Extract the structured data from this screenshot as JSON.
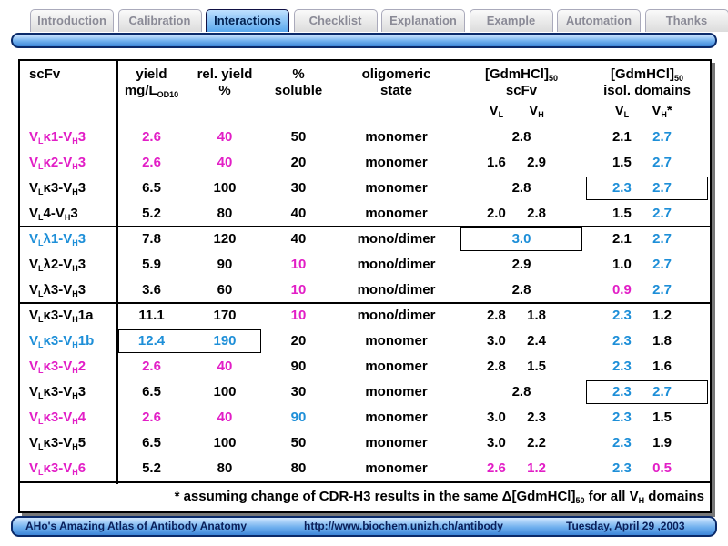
{
  "tabs": {
    "items": [
      "Introduction",
      "Calibration",
      "Interactions",
      "Checklist",
      "Explanation",
      "Example",
      "Automation",
      "Thanks"
    ],
    "active": 2
  },
  "table": {
    "header": [
      {
        "lines": [
          [
            "scFv"
          ]
        ]
      },
      {
        "lines": [
          [
            "yield"
          ],
          [
            "mg/L",
            "OD10"
          ]
        ]
      },
      {
        "lines": [
          [
            "rel. yield"
          ],
          [
            "%"
          ]
        ]
      },
      {
        "lines": [
          [
            "%"
          ],
          [
            "soluble"
          ]
        ]
      },
      {
        "lines": [
          [
            "oligomeric"
          ],
          [
            "state"
          ]
        ]
      },
      {
        "lines": [
          [
            "[GdmHCl]",
            "50"
          ],
          [
            "scFv"
          ]
        ],
        "pair": [
          [
            "V",
            "L"
          ],
          [
            "V",
            "H"
          ]
        ]
      },
      {
        "lines": [
          [
            "[GdmHCl]",
            "50"
          ],
          [
            "isol. domains"
          ]
        ],
        "pair": [
          [
            "V",
            "L"
          ],
          [
            "V",
            "H",
            "*"
          ]
        ]
      }
    ],
    "groups": [
      {
        "rows": [
          {
            "scfv": {
              "parts": [
                "V",
                "L",
                "κ1-V",
                "H",
                "3"
              ],
              "color": "#e21ec6"
            },
            "yield": {
              "text": "2.6",
              "color": "#e21ec6"
            },
            "rel_yield": {
              "text": "40",
              "color": "#e21ec6"
            },
            "soluble": {
              "text": "50"
            },
            "state": {
              "text": "monomer"
            },
            "gdm_scfv": {
              "text": "2.8"
            },
            "isol": {
              "vl": {
                "text": "2.1"
              },
              "vh": {
                "text": "2.7",
                "color": "#1e8fd8"
              }
            }
          },
          {
            "scfv": {
              "parts": [
                "V",
                "L",
                "κ2-V",
                "H",
                "3"
              ],
              "color": "#e21ec6"
            },
            "yield": {
              "text": "2.6",
              "color": "#e21ec6"
            },
            "rel_yield": {
              "text": "40",
              "color": "#e21ec6"
            },
            "soluble": {
              "text": "20"
            },
            "state": {
              "text": "monomer"
            },
            "gdm_scfv": {
              "vl": {
                "text": "1.6"
              },
              "vh": {
                "text": "2.9"
              }
            },
            "isol": {
              "vl": {
                "text": "1.5"
              },
              "vh": {
                "text": "2.7",
                "color": "#1e8fd8"
              }
            }
          },
          {
            "scfv": {
              "parts": [
                "V",
                "L",
                "κ3-V",
                "H",
                "3"
              ]
            },
            "yield": {
              "text": "6.5"
            },
            "rel_yield": {
              "text": "100"
            },
            "soluble": {
              "text": "30"
            },
            "state": {
              "text": "monomer"
            },
            "gdm_scfv": {
              "text": "2.8"
            },
            "isol": {
              "vl": {
                "text": "2.3",
                "color": "#1e8fd8"
              },
              "vh": {
                "text": "2.7",
                "color": "#1e8fd8"
              }
            },
            "box": [
              "isol"
            ]
          },
          {
            "scfv": {
              "parts": [
                "V",
                "L",
                "4-V",
                "H",
                "3"
              ]
            },
            "yield": {
              "text": "5.2"
            },
            "rel_yield": {
              "text": "80"
            },
            "soluble": {
              "text": "40"
            },
            "state": {
              "text": "monomer"
            },
            "gdm_scfv": {
              "vl": {
                "text": "2.0"
              },
              "vh": {
                "text": "2.8"
              }
            },
            "isol": {
              "vl": {
                "text": "1.5"
              },
              "vh": {
                "text": "2.7",
                "color": "#1e8fd8"
              }
            }
          }
        ]
      },
      {
        "rows": [
          {
            "scfv": {
              "parts": [
                "V",
                "L",
                "λ1-V",
                "H",
                "3"
              ],
              "color": "#1e8fd8"
            },
            "yield": {
              "text": "7.8"
            },
            "rel_yield": {
              "text": "120"
            },
            "soluble": {
              "text": "40"
            },
            "state": {
              "text": "mono/dimer"
            },
            "gdm_scfv": {
              "text": "3.0",
              "color": "#1e8fd8"
            },
            "isol": {
              "vl": {
                "text": "2.1"
              },
              "vh": {
                "text": "2.7",
                "color": "#1e8fd8"
              }
            },
            "box": [
              "gdm_scfv"
            ]
          },
          {
            "scfv": {
              "parts": [
                "V",
                "L",
                "λ2-V",
                "H",
                "3"
              ]
            },
            "yield": {
              "text": "5.9"
            },
            "rel_yield": {
              "text": "90"
            },
            "soluble": {
              "text": "10",
              "color": "#e21ec6"
            },
            "state": {
              "text": "mono/dimer"
            },
            "gdm_scfv": {
              "text": "2.9"
            },
            "isol": {
              "vl": {
                "text": "1.0"
              },
              "vh": {
                "text": "2.7",
                "color": "#1e8fd8"
              }
            }
          },
          {
            "scfv": {
              "parts": [
                "V",
                "L",
                "λ3-V",
                "H",
                "3"
              ]
            },
            "yield": {
              "text": "3.6"
            },
            "rel_yield": {
              "text": "60"
            },
            "soluble": {
              "text": "10",
              "color": "#e21ec6"
            },
            "state": {
              "text": "mono/dimer"
            },
            "gdm_scfv": {
              "text": "2.8"
            },
            "isol": {
              "vl": {
                "text": "0.9",
                "color": "#e21ec6"
              },
              "vh": {
                "text": "2.7",
                "color": "#1e8fd8"
              }
            }
          }
        ]
      },
      {
        "rows": [
          {
            "scfv": {
              "parts": [
                "V",
                "L",
                "κ3-V",
                "H",
                "1a"
              ]
            },
            "yield": {
              "text": "11.1"
            },
            "rel_yield": {
              "text": "170"
            },
            "soluble": {
              "text": "10",
              "color": "#e21ec6"
            },
            "state": {
              "text": "mono/dimer"
            },
            "gdm_scfv": {
              "vl": {
                "text": "2.8"
              },
              "vh": {
                "text": "1.8"
              }
            },
            "isol": {
              "vl": {
                "text": "2.3",
                "color": "#1e8fd8"
              },
              "vh": {
                "text": "1.2"
              }
            }
          },
          {
            "scfv": {
              "parts": [
                "V",
                "L",
                "κ3-V",
                "H",
                "1b"
              ],
              "color": "#1e8fd8"
            },
            "yield": {
              "text": "12.4",
              "color": "#1e8fd8"
            },
            "rel_yield": {
              "text": "190",
              "color": "#1e8fd8"
            },
            "soluble": {
              "text": "20"
            },
            "state": {
              "text": "monomer"
            },
            "gdm_scfv": {
              "vl": {
                "text": "3.0"
              },
              "vh": {
                "text": "2.4"
              }
            },
            "isol": {
              "vl": {
                "text": "2.3",
                "color": "#1e8fd8"
              },
              "vh": {
                "text": "1.8"
              }
            },
            "box": [
              "yield",
              "rel_yield"
            ]
          },
          {
            "scfv": {
              "parts": [
                "V",
                "L",
                "κ3-V",
                "H",
                "2"
              ],
              "color": "#e21ec6"
            },
            "yield": {
              "text": "2.6",
              "color": "#e21ec6"
            },
            "rel_yield": {
              "text": "40",
              "color": "#e21ec6"
            },
            "soluble": {
              "text": "90"
            },
            "state": {
              "text": "monomer"
            },
            "gdm_scfv": {
              "vl": {
                "text": "2.8"
              },
              "vh": {
                "text": "1.5"
              }
            },
            "isol": {
              "vl": {
                "text": "2.3",
                "color": "#1e8fd8"
              },
              "vh": {
                "text": "1.6"
              }
            }
          },
          {
            "scfv": {
              "parts": [
                "V",
                "L",
                "κ3-V",
                "H",
                "3"
              ]
            },
            "yield": {
              "text": "6.5"
            },
            "rel_yield": {
              "text": "100"
            },
            "soluble": {
              "text": "30"
            },
            "state": {
              "text": "monomer"
            },
            "gdm_scfv": {
              "text": "2.8"
            },
            "isol": {
              "vl": {
                "text": "2.3",
                "color": "#1e8fd8"
              },
              "vh": {
                "text": "2.7",
                "color": "#1e8fd8"
              }
            },
            "box": [
              "isol"
            ]
          },
          {
            "scfv": {
              "parts": [
                "V",
                "L",
                "κ3-V",
                "H",
                "4"
              ],
              "color": "#e21ec6"
            },
            "yield": {
              "text": "2.6",
              "color": "#e21ec6"
            },
            "rel_yield": {
              "text": "40",
              "color": "#e21ec6"
            },
            "soluble": {
              "text": "90",
              "color": "#1e8fd8"
            },
            "state": {
              "text": "monomer"
            },
            "gdm_scfv": {
              "vl": {
                "text": "3.0"
              },
              "vh": {
                "text": "2.3"
              }
            },
            "isol": {
              "vl": {
                "text": "2.3",
                "color": "#1e8fd8"
              },
              "vh": {
                "text": "1.5"
              }
            }
          },
          {
            "scfv": {
              "parts": [
                "V",
                "L",
                "κ3-V",
                "H",
                "5"
              ]
            },
            "yield": {
              "text": "6.5"
            },
            "rel_yield": {
              "text": "100"
            },
            "soluble": {
              "text": "50"
            },
            "state": {
              "text": "monomer"
            },
            "gdm_scfv": {
              "vl": {
                "text": "3.0"
              },
              "vh": {
                "text": "2.2"
              }
            },
            "isol": {
              "vl": {
                "text": "2.3",
                "color": "#1e8fd8"
              },
              "vh": {
                "text": "1.9"
              }
            }
          },
          {
            "scfv": {
              "parts": [
                "V",
                "L",
                "κ3-V",
                "H",
                "6"
              ],
              "color": "#e21ec6"
            },
            "yield": {
              "text": "5.2"
            },
            "rel_yield": {
              "text": "80"
            },
            "soluble": {
              "text": "80"
            },
            "state": {
              "text": "monomer"
            },
            "gdm_scfv": {
              "vl": {
                "text": "2.6",
                "color": "#e21ec6"
              },
              "vh": {
                "text": "1.2",
                "color": "#e21ec6"
              }
            },
            "isol": {
              "vl": {
                "text": "2.3",
                "color": "#1e8fd8"
              },
              "vh": {
                "text": "0.5",
                "color": "#e21ec6"
              }
            }
          }
        ]
      }
    ],
    "footnote": [
      "* assuming change of CDR-H3 results in the same Δ[GdmHCl]",
      "50",
      " for all V",
      "H",
      " domains"
    ]
  },
  "footer": {
    "left": "AHo's Amazing Atlas of Antibody Anatomy",
    "center": "http://www.biochem.unizh.ch/antibody",
    "right": "Tuesday, April 29 ,2003"
  }
}
